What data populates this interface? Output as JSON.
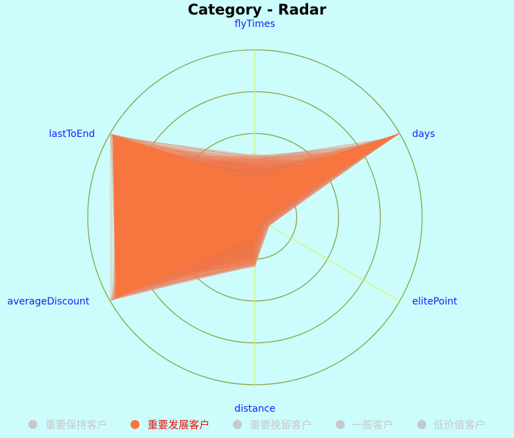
{
  "chart_data": {
    "type": "radar",
    "title": "Category - Radar",
    "indicators": [
      "flyTimes",
      "days",
      "elitePoint",
      "distance",
      "averageDiscount",
      "lastToEnd"
    ],
    "rings": 4,
    "series": [
      {
        "name": "重要保持客户",
        "selected": false
      },
      {
        "name": "重要发展客户",
        "selected": true,
        "representative": [
          0.22,
          1.0,
          0.03,
          0.12,
          0.96,
          0.98
        ],
        "min": [
          0.1,
          0.55,
          0.0,
          0.05,
          0.7,
          0.6
        ],
        "max": [
          0.38,
          1.0,
          0.1,
          0.3,
          1.0,
          1.0
        ]
      },
      {
        "name": "重要挽留客户",
        "selected": false
      },
      {
        "name": "一般客户",
        "selected": false
      },
      {
        "name": "低价值客户",
        "selected": false
      }
    ],
    "colors": {
      "area": "#f7753e",
      "ring": "#8aa33c",
      "axis": "#d4f56a",
      "label": "#1a1aff",
      "legend_active": "#e8140c",
      "legend_inactive": "#c8c8c8"
    }
  }
}
